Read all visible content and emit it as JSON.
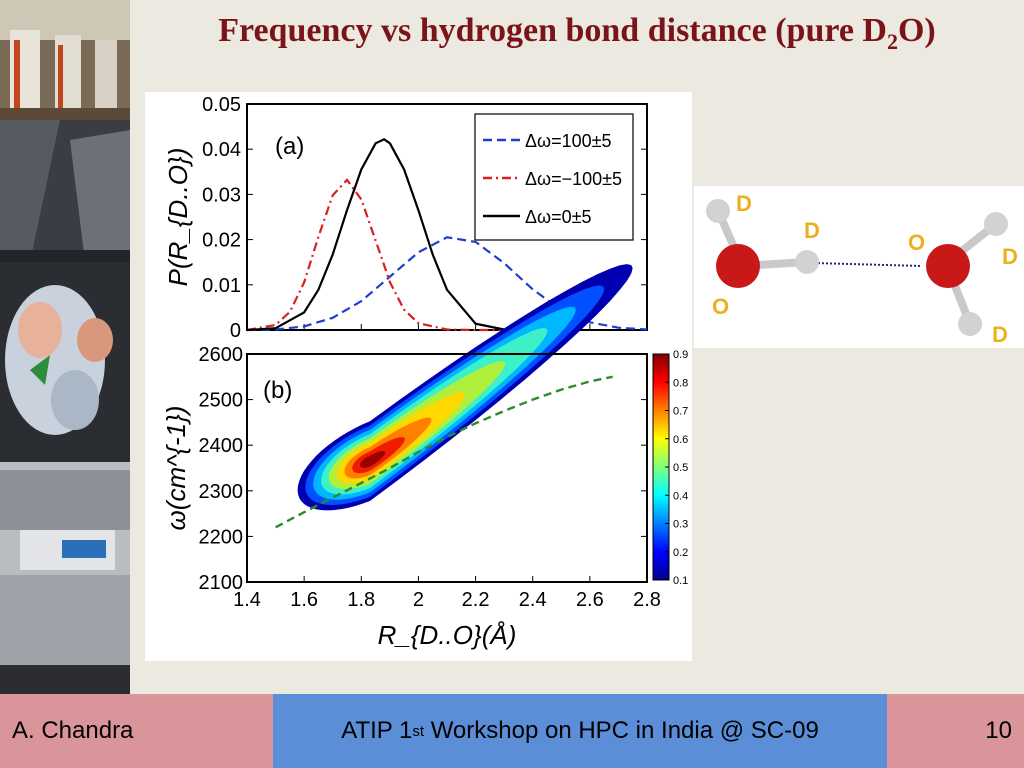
{
  "slide": {
    "title_prefix": "Frequency vs hydrogen bond distance (pure D",
    "title_sub": "2",
    "title_suffix": "O)"
  },
  "footer": {
    "author": "A. Chandra",
    "event_prefix": "ATIP 1",
    "event_sup": "st",
    "event_suffix": " Workshop on HPC in India @ SC-09",
    "page": "10"
  },
  "colors": {
    "title": "#7a1418",
    "footer_side": "#d99599",
    "footer_center": "#5b8ed6",
    "series_blue": "#1f3ecf",
    "series_red": "#d8201f",
    "series_black": "#000000",
    "fit_line": "#2f8a2f"
  },
  "molecule": {
    "labels": [
      "D",
      "D",
      "O",
      "O",
      "D",
      "D"
    ],
    "label_color": "#e8b21e",
    "icon": "water-dimer-icon"
  },
  "chart_data": [
    {
      "panel": "(a)",
      "type": "line",
      "xlim": [
        1.4,
        2.8
      ],
      "ylim": [
        0,
        0.05
      ],
      "yticks": [
        "0",
        "0.01",
        "0.02",
        "0.03",
        "0.04",
        "0.05"
      ],
      "ylabel": "P(R_{D..O})",
      "legend_position": "top-right",
      "series": [
        {
          "name": "Δω=100±5",
          "style": "dashed",
          "color": "#1f3ecf",
          "x": [
            1.4,
            1.5,
            1.6,
            1.7,
            1.8,
            1.9,
            2.0,
            2.1,
            2.2,
            2.3,
            2.4,
            2.5,
            2.6,
            2.7,
            2.8
          ],
          "y": [
            0.0,
            0.0001,
            0.0008,
            0.0027,
            0.0064,
            0.0118,
            0.0172,
            0.0205,
            0.0195,
            0.0148,
            0.009,
            0.0044,
            0.0017,
            0.0005,
            0.0001
          ]
        },
        {
          "name": "Δω=−100±5",
          "style": "dashdot",
          "color": "#d8201f",
          "x": [
            1.4,
            1.5,
            1.55,
            1.6,
            1.65,
            1.7,
            1.75,
            1.8,
            1.85,
            1.9,
            1.95,
            2.0,
            2.1,
            2.2,
            2.3
          ],
          "y": [
            0.0,
            0.0011,
            0.004,
            0.0105,
            0.0206,
            0.0298,
            0.0332,
            0.0289,
            0.0198,
            0.0106,
            0.0045,
            0.0015,
            0.0001,
            0.0,
            0.0
          ]
        },
        {
          "name": "Δω=0±5",
          "style": "solid",
          "color": "#000000",
          "x": [
            1.4,
            1.5,
            1.6,
            1.65,
            1.7,
            1.75,
            1.8,
            1.85,
            1.88,
            1.9,
            1.95,
            2.0,
            2.05,
            2.1,
            2.2,
            2.3,
            2.4
          ],
          "y": [
            0.0,
            0.0004,
            0.0039,
            0.0089,
            0.0167,
            0.0265,
            0.0355,
            0.0413,
            0.0422,
            0.0413,
            0.0355,
            0.0265,
            0.0167,
            0.0089,
            0.0014,
            0.0001,
            0.0
          ]
        }
      ]
    },
    {
      "panel": "(b)",
      "type": "heatmap",
      "xlabel": "R_{D..O}(Å)",
      "ylabel": "ω(cm^{-1})",
      "xlim": [
        1.4,
        2.8
      ],
      "ylim": [
        2100,
        2600
      ],
      "xticks": [
        "1.4",
        "1.6",
        "1.8",
        "2",
        "2.2",
        "2.4",
        "2.6",
        "2.8"
      ],
      "yticks": [
        "2100",
        "2200",
        "2300",
        "2400",
        "2500",
        "2600"
      ],
      "colorbar": {
        "min": 0.1,
        "max": 0.9,
        "ticks": [
          "0.1",
          "0.2",
          "0.3",
          "0.4",
          "0.5",
          "0.6",
          "0.7",
          "0.8",
          "0.9"
        ]
      },
      "peak": {
        "x": 1.83,
        "y": 2365,
        "value": 0.9
      },
      "fit_line": {
        "style": "dashed",
        "x": [
          1.5,
          1.6,
          1.7,
          1.8,
          1.9,
          2.0,
          2.1,
          2.2,
          2.3,
          2.4,
          2.5,
          2.6,
          2.68
        ],
        "y": [
          2220,
          2253,
          2285,
          2317,
          2350,
          2385,
          2418,
          2448,
          2475,
          2500,
          2522,
          2540,
          2550
        ]
      }
    }
  ]
}
